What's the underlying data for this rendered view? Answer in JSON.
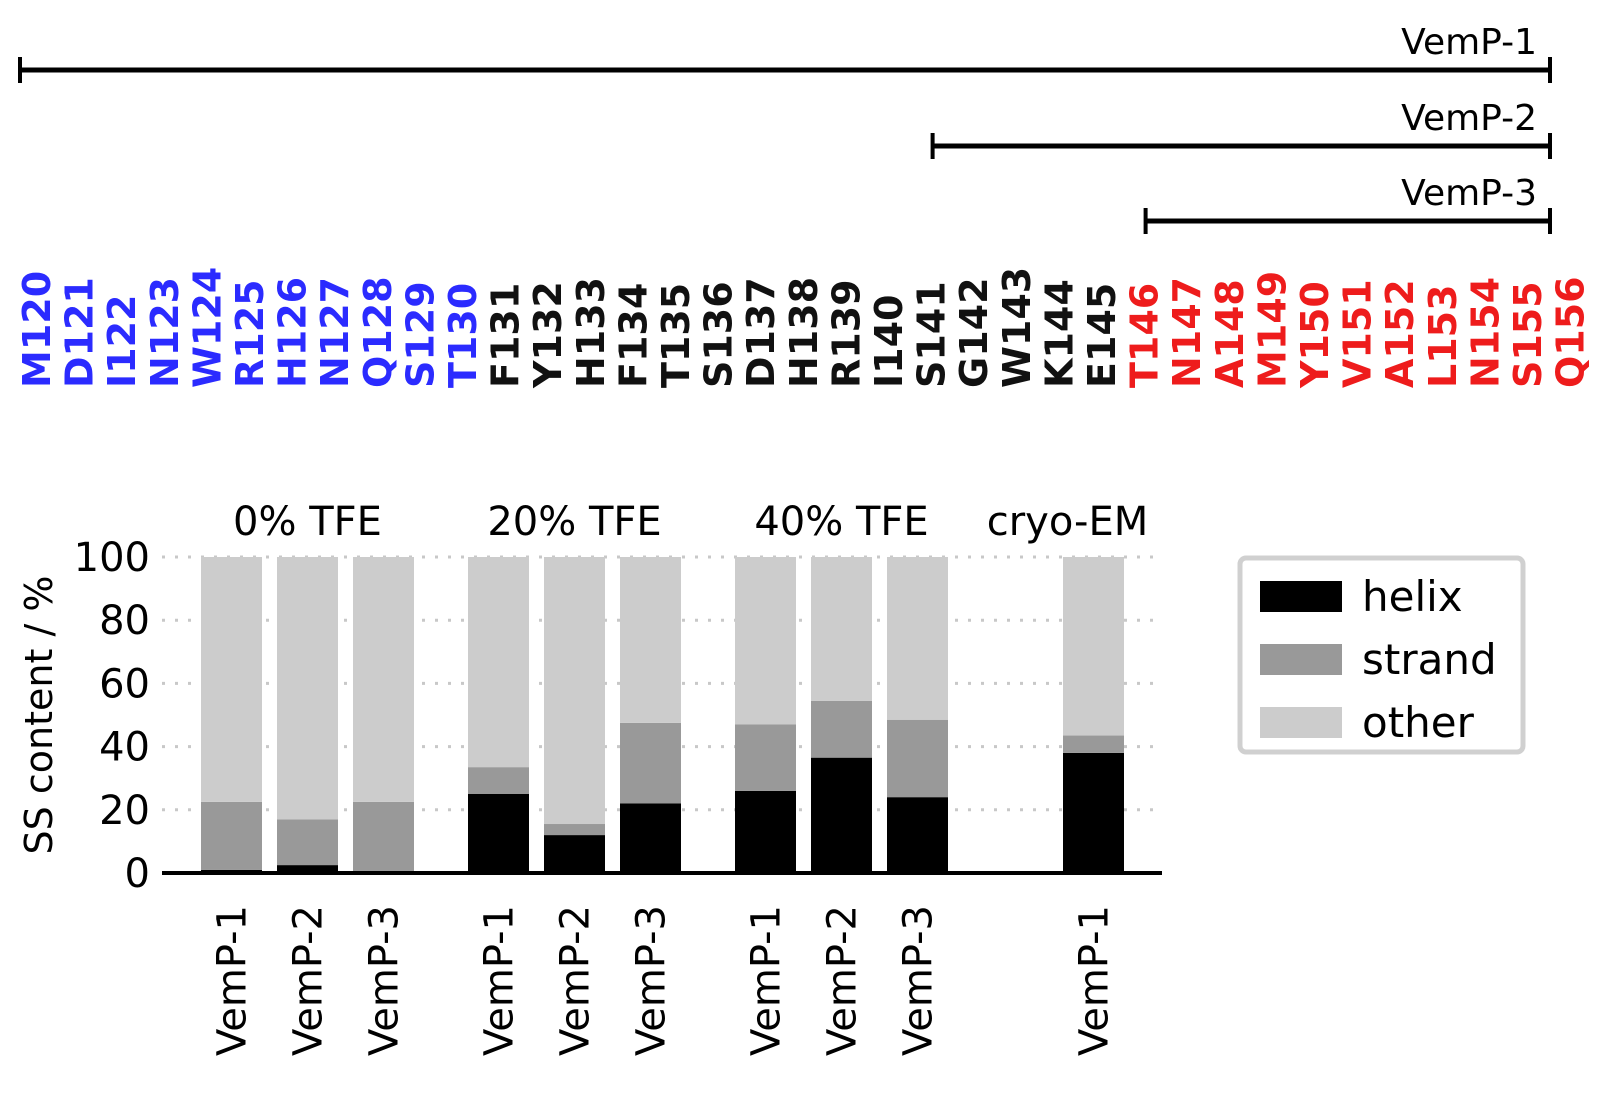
{
  "constructs": [
    {
      "label": "VemP-1",
      "start": "M120",
      "end": "Q156"
    },
    {
      "label": "VemP-2",
      "start": "S141",
      "end": "Q156"
    },
    {
      "label": "VemP-3",
      "start": "T146",
      "end": "Q156"
    }
  ],
  "residues": [
    {
      "label": "M120",
      "color": "#2b2bff"
    },
    {
      "label": "D121",
      "color": "#2b2bff"
    },
    {
      "label": "I122",
      "color": "#2b2bff"
    },
    {
      "label": "N123",
      "color": "#2b2bff"
    },
    {
      "label": "W124",
      "color": "#2b2bff"
    },
    {
      "label": "R125",
      "color": "#2b2bff"
    },
    {
      "label": "H126",
      "color": "#2b2bff"
    },
    {
      "label": "N127",
      "color": "#2b2bff"
    },
    {
      "label": "Q128",
      "color": "#2b2bff"
    },
    {
      "label": "S129",
      "color": "#2b2bff"
    },
    {
      "label": "T130",
      "color": "#2b2bff"
    },
    {
      "label": "F131",
      "color": "#111111"
    },
    {
      "label": "Y132",
      "color": "#111111"
    },
    {
      "label": "H133",
      "color": "#111111"
    },
    {
      "label": "F134",
      "color": "#111111"
    },
    {
      "label": "T135",
      "color": "#111111"
    },
    {
      "label": "S136",
      "color": "#111111"
    },
    {
      "label": "D137",
      "color": "#111111"
    },
    {
      "label": "H138",
      "color": "#111111"
    },
    {
      "label": "R139",
      "color": "#111111"
    },
    {
      "label": "I140",
      "color": "#111111"
    },
    {
      "label": "S141",
      "color": "#111111"
    },
    {
      "label": "G142",
      "color": "#111111"
    },
    {
      "label": "W143",
      "color": "#111111"
    },
    {
      "label": "K144",
      "color": "#111111"
    },
    {
      "label": "E145",
      "color": "#111111"
    },
    {
      "label": "T146",
      "color": "#ee1c1c"
    },
    {
      "label": "N147",
      "color": "#ee1c1c"
    },
    {
      "label": "A148",
      "color": "#ee1c1c"
    },
    {
      "label": "M149",
      "color": "#ee1c1c"
    },
    {
      "label": "Y150",
      "color": "#ee1c1c"
    },
    {
      "label": "V151",
      "color": "#ee1c1c"
    },
    {
      "label": "A152",
      "color": "#ee1c1c"
    },
    {
      "label": "L153",
      "color": "#ee1c1c"
    },
    {
      "label": "N154",
      "color": "#ee1c1c"
    },
    {
      "label": "S155",
      "color": "#ee1c1c"
    },
    {
      "label": "Q156",
      "color": "#ee1c1c"
    }
  ],
  "chart_data": {
    "type": "bar",
    "stacked": true,
    "ylabel": "SS content / %",
    "ylim": [
      0,
      100
    ],
    "yticks": [
      0,
      20,
      40,
      60,
      80,
      100
    ],
    "grid": "horizontal-dotted",
    "legend_position": "right",
    "groups": [
      {
        "label": "0% TFE",
        "bars": [
          {
            "category": "VemP-1",
            "helix": 1,
            "strand": 21.5,
            "other": 77.5
          },
          {
            "category": "VemP-2",
            "helix": 2.5,
            "strand": 14.5,
            "other": 83
          },
          {
            "category": "VemP-3",
            "helix": 0.5,
            "strand": 22,
            "other": 77.5
          }
        ]
      },
      {
        "label": "20% TFE",
        "bars": [
          {
            "category": "VemP-1",
            "helix": 25,
            "strand": 8.5,
            "other": 66.5
          },
          {
            "category": "VemP-2",
            "helix": 12,
            "strand": 3.5,
            "other": 84.5
          },
          {
            "category": "VemP-3",
            "helix": 22,
            "strand": 25.5,
            "other": 52.5
          }
        ]
      },
      {
        "label": "40% TFE",
        "bars": [
          {
            "category": "VemP-1",
            "helix": 26,
            "strand": 21,
            "other": 53
          },
          {
            "category": "VemP-2",
            "helix": 36.5,
            "strand": 18,
            "other": 45.5
          },
          {
            "category": "VemP-3",
            "helix": 24,
            "strand": 24.5,
            "other": 51.5
          }
        ]
      },
      {
        "label": "cryo-EM",
        "bars": [
          {
            "category": "",
            "helix": null,
            "strand": null,
            "other": null
          },
          {
            "category": "VemP-1",
            "helix": 38,
            "strand": 5.5,
            "other": 56.5
          }
        ]
      }
    ],
    "series": [
      {
        "key": "helix",
        "name": "helix",
        "color": "#000000"
      },
      {
        "key": "strand",
        "name": "strand",
        "color": "#999999"
      },
      {
        "key": "other",
        "name": "other",
        "color": "#cccccc"
      }
    ]
  }
}
